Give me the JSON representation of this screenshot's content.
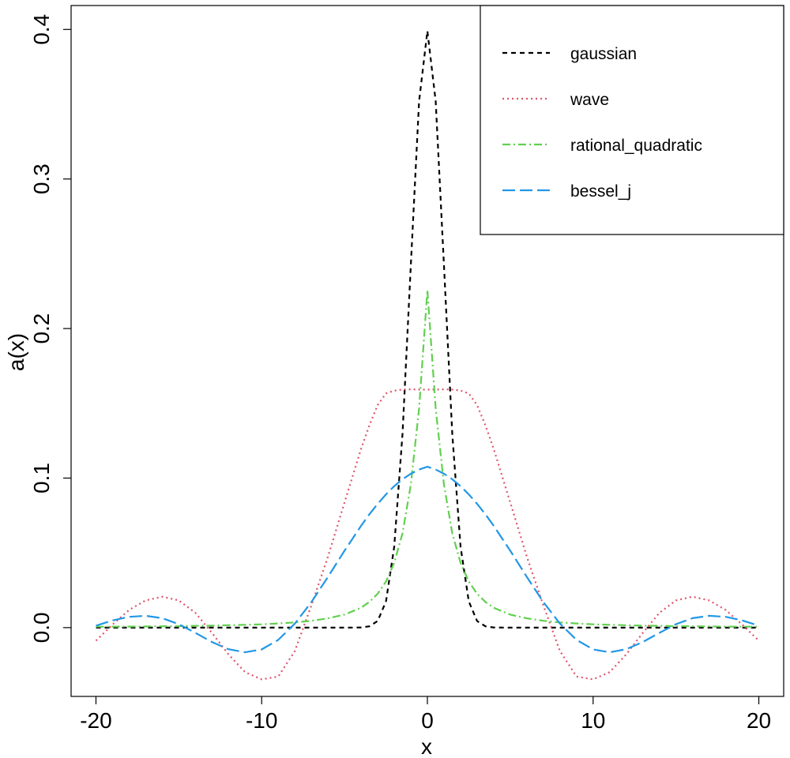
{
  "chart_data": {
    "type": "line",
    "xlabel": "x",
    "ylabel": "a(x)",
    "xlim": [
      -21.5,
      21.5
    ],
    "ylim": [
      -0.046,
      0.416
    ],
    "xticks": [
      -20,
      -10,
      0,
      10,
      20
    ],
    "xtick_labels": [
      "-20",
      "-10",
      "0",
      "10",
      "20"
    ],
    "yticks": [
      0.0,
      0.1,
      0.2,
      0.3,
      0.4
    ],
    "ytick_labels": [
      "0.0",
      "0.1",
      "0.2",
      "0.3",
      "0.4"
    ],
    "grid": false,
    "legend_position": "top-right",
    "x": [
      -20,
      -19,
      -18,
      -17,
      -16,
      -15,
      -14,
      -13,
      -12,
      -11,
      -10,
      -9,
      -8,
      -7,
      -6,
      -5,
      -4,
      -3.5,
      -3,
      -2.5,
      -2,
      -1.5,
      -1,
      -0.5,
      0,
      0.5,
      1,
      1.5,
      2,
      2.5,
      3,
      3.5,
      4,
      5,
      6,
      7,
      8,
      9,
      10,
      11,
      12,
      13,
      14,
      15,
      16,
      17,
      18,
      19,
      20
    ],
    "series": [
      {
        "name": "gaussian",
        "color": "#000000",
        "dash": "6,5",
        "values": [
          0,
          0,
          0,
          0,
          0,
          0,
          0,
          0,
          0,
          0,
          0,
          0,
          0,
          0,
          0,
          0,
          0.0001,
          0.0009,
          0.0044,
          0.0175,
          0.054,
          0.1295,
          0.242,
          0.352,
          0.399,
          0.352,
          0.242,
          0.1295,
          0.054,
          0.0175,
          0.0044,
          0.0009,
          0.0001,
          0,
          0,
          0,
          0,
          0,
          0,
          0,
          0,
          0,
          0,
          0,
          0,
          0,
          0,
          0,
          0
        ]
      },
      {
        "name": "wave",
        "color": "#DF536B",
        "dash": "2,4",
        "values": [
          -0.0087,
          0.002,
          0.0118,
          0.0182,
          0.0207,
          0.0182,
          0.0099,
          -0.0035,
          -0.0179,
          -0.0298,
          -0.0346,
          -0.0327,
          -0.0157,
          0.0149,
          0.0474,
          0.0837,
          0.1196,
          0.1353,
          0.1489,
          0.1566,
          0.1585,
          0.1592,
          0.1594,
          0.1592,
          0.1592,
          0.1592,
          0.1594,
          0.1592,
          0.1585,
          0.1566,
          0.1489,
          0.1353,
          0.1196,
          0.0837,
          0.0474,
          0.0149,
          -0.0157,
          -0.0327,
          -0.0346,
          -0.0298,
          -0.0179,
          -0.0035,
          0.0099,
          0.0182,
          0.0207,
          0.0182,
          0.0118,
          0.002,
          -0.0087
        ]
      },
      {
        "name": "rational_quadratic",
        "color": "#61D04F",
        "dash": "10,4,2,4",
        "values": [
          0.0006,
          0.0006,
          0.0007,
          0.0008,
          0.0009,
          0.001,
          0.0012,
          0.0013,
          0.0016,
          0.0019,
          0.0022,
          0.0028,
          0.0035,
          0.0046,
          0.0062,
          0.0087,
          0.0133,
          0.0172,
          0.0227,
          0.0308,
          0.0433,
          0.0631,
          0.0955,
          0.1465,
          0.2257,
          0.1465,
          0.0955,
          0.0631,
          0.0433,
          0.0308,
          0.0227,
          0.0172,
          0.0133,
          0.0087,
          0.0062,
          0.0046,
          0.0035,
          0.0028,
          0.0022,
          0.0019,
          0.0016,
          0.0013,
          0.0012,
          0.001,
          0.0009,
          0.0008,
          0.0007,
          0.0006,
          0.0006
        ]
      },
      {
        "name": "bessel_j",
        "color": "#2297E6",
        "dash": "16,6",
        "values": [
          0.0013,
          0.0048,
          0.0072,
          0.0079,
          0.0063,
          0.0023,
          -0.0035,
          -0.0096,
          -0.0144,
          -0.0165,
          -0.0146,
          -0.0082,
          0.0027,
          0.0171,
          0.0339,
          0.0514,
          0.0681,
          0.0758,
          0.0828,
          0.0891,
          0.0946,
          0.0992,
          0.1029,
          0.1057,
          0.1076,
          0.1057,
          0.1029,
          0.0992,
          0.0946,
          0.0891,
          0.0828,
          0.0758,
          0.0681,
          0.0514,
          0.0339,
          0.0171,
          0.0027,
          -0.0082,
          -0.0146,
          -0.0165,
          -0.0144,
          -0.0096,
          -0.0035,
          0.0023,
          0.0063,
          0.0079,
          0.0072,
          0.0048,
          0.0013
        ]
      }
    ]
  }
}
